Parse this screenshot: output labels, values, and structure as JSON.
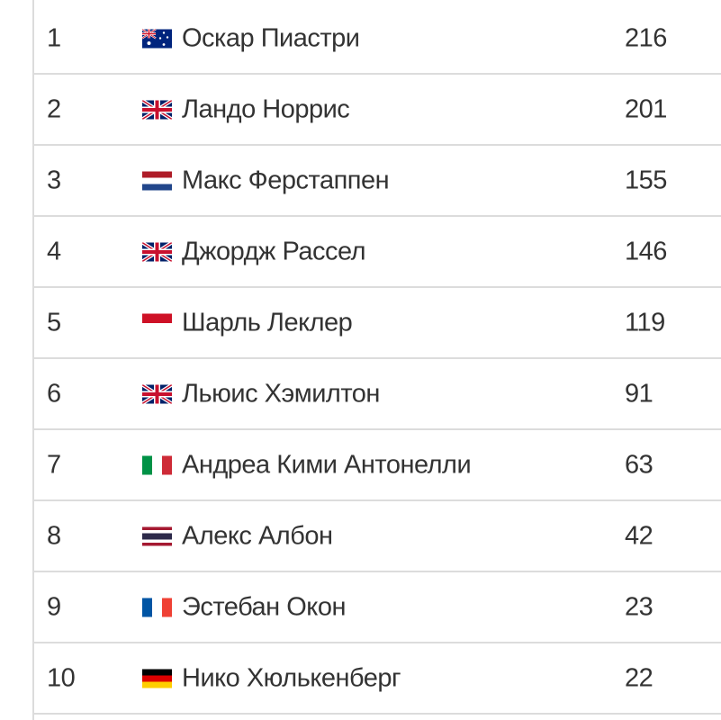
{
  "standings": [
    {
      "position": "1",
      "flag": "australia-flag-icon",
      "name": "Оскар Пиастри",
      "points": "216"
    },
    {
      "position": "2",
      "flag": "uk-flag-icon",
      "name": "Ландо Норрис",
      "points": "201"
    },
    {
      "position": "3",
      "flag": "netherlands-flag-icon",
      "name": "Макс Ферстаппен",
      "points": "155"
    },
    {
      "position": "4",
      "flag": "uk-flag-icon",
      "name": "Джордж Рассел",
      "points": "146"
    },
    {
      "position": "5",
      "flag": "monaco-flag-icon",
      "name": "Шарль Леклер",
      "points": "119"
    },
    {
      "position": "6",
      "flag": "uk-flag-icon",
      "name": "Льюис Хэмилтон",
      "points": "91"
    },
    {
      "position": "7",
      "flag": "italy-flag-icon",
      "name": "Андреа Кими Антонелли",
      "points": "63"
    },
    {
      "position": "8",
      "flag": "thailand-flag-icon",
      "name": "Алекс Албон",
      "points": "42"
    },
    {
      "position": "9",
      "flag": "france-flag-icon",
      "name": "Эстебан Окон",
      "points": "23"
    },
    {
      "position": "10",
      "flag": "germany-flag-icon",
      "name": "Нико Хюлькенберг",
      "points": "22"
    }
  ],
  "colors": {
    "text": "#333333",
    "border": "#dcdcdc"
  }
}
